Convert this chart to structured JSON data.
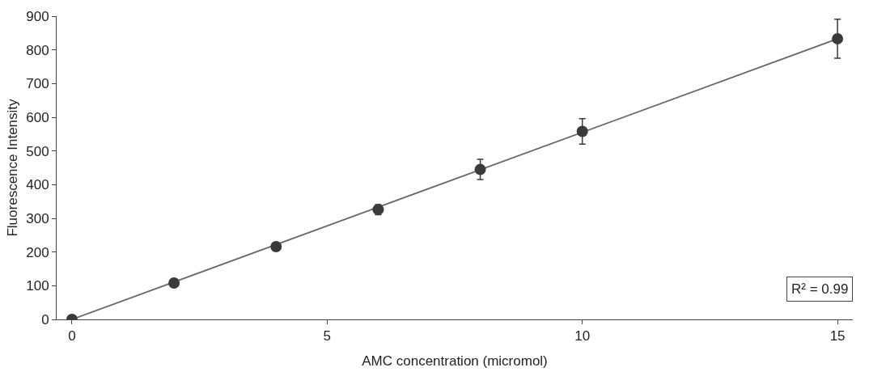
{
  "chart_data": {
    "type": "scatter",
    "xlabel": "AMC concentration (micromol)",
    "ylabel": "Fluorescence Intensity",
    "x": [
      0,
      2,
      4,
      6,
      8,
      10,
      15
    ],
    "series": [
      {
        "color": "#3a3a3a",
        "values": [
          0,
          108,
          216,
          326,
          445,
          558,
          833
        ],
        "errors": [
          null,
          null,
          null,
          15,
          30,
          38,
          58
        ],
        "marker": "circle"
      },
      {
        "type": "line",
        "color": "#666666",
        "x": [
          0,
          15
        ],
        "values": [
          0,
          833
        ],
        "line_style": "solid"
      }
    ],
    "xlim": [
      -0.3,
      15.3
    ],
    "xticks": [
      0,
      5,
      10,
      15
    ],
    "ylim": [
      0,
      900
    ],
    "yticks": [
      0,
      100,
      200,
      300,
      400,
      500,
      600,
      700,
      800,
      900
    ],
    "annotations": [
      "R² = 0.99"
    ]
  }
}
